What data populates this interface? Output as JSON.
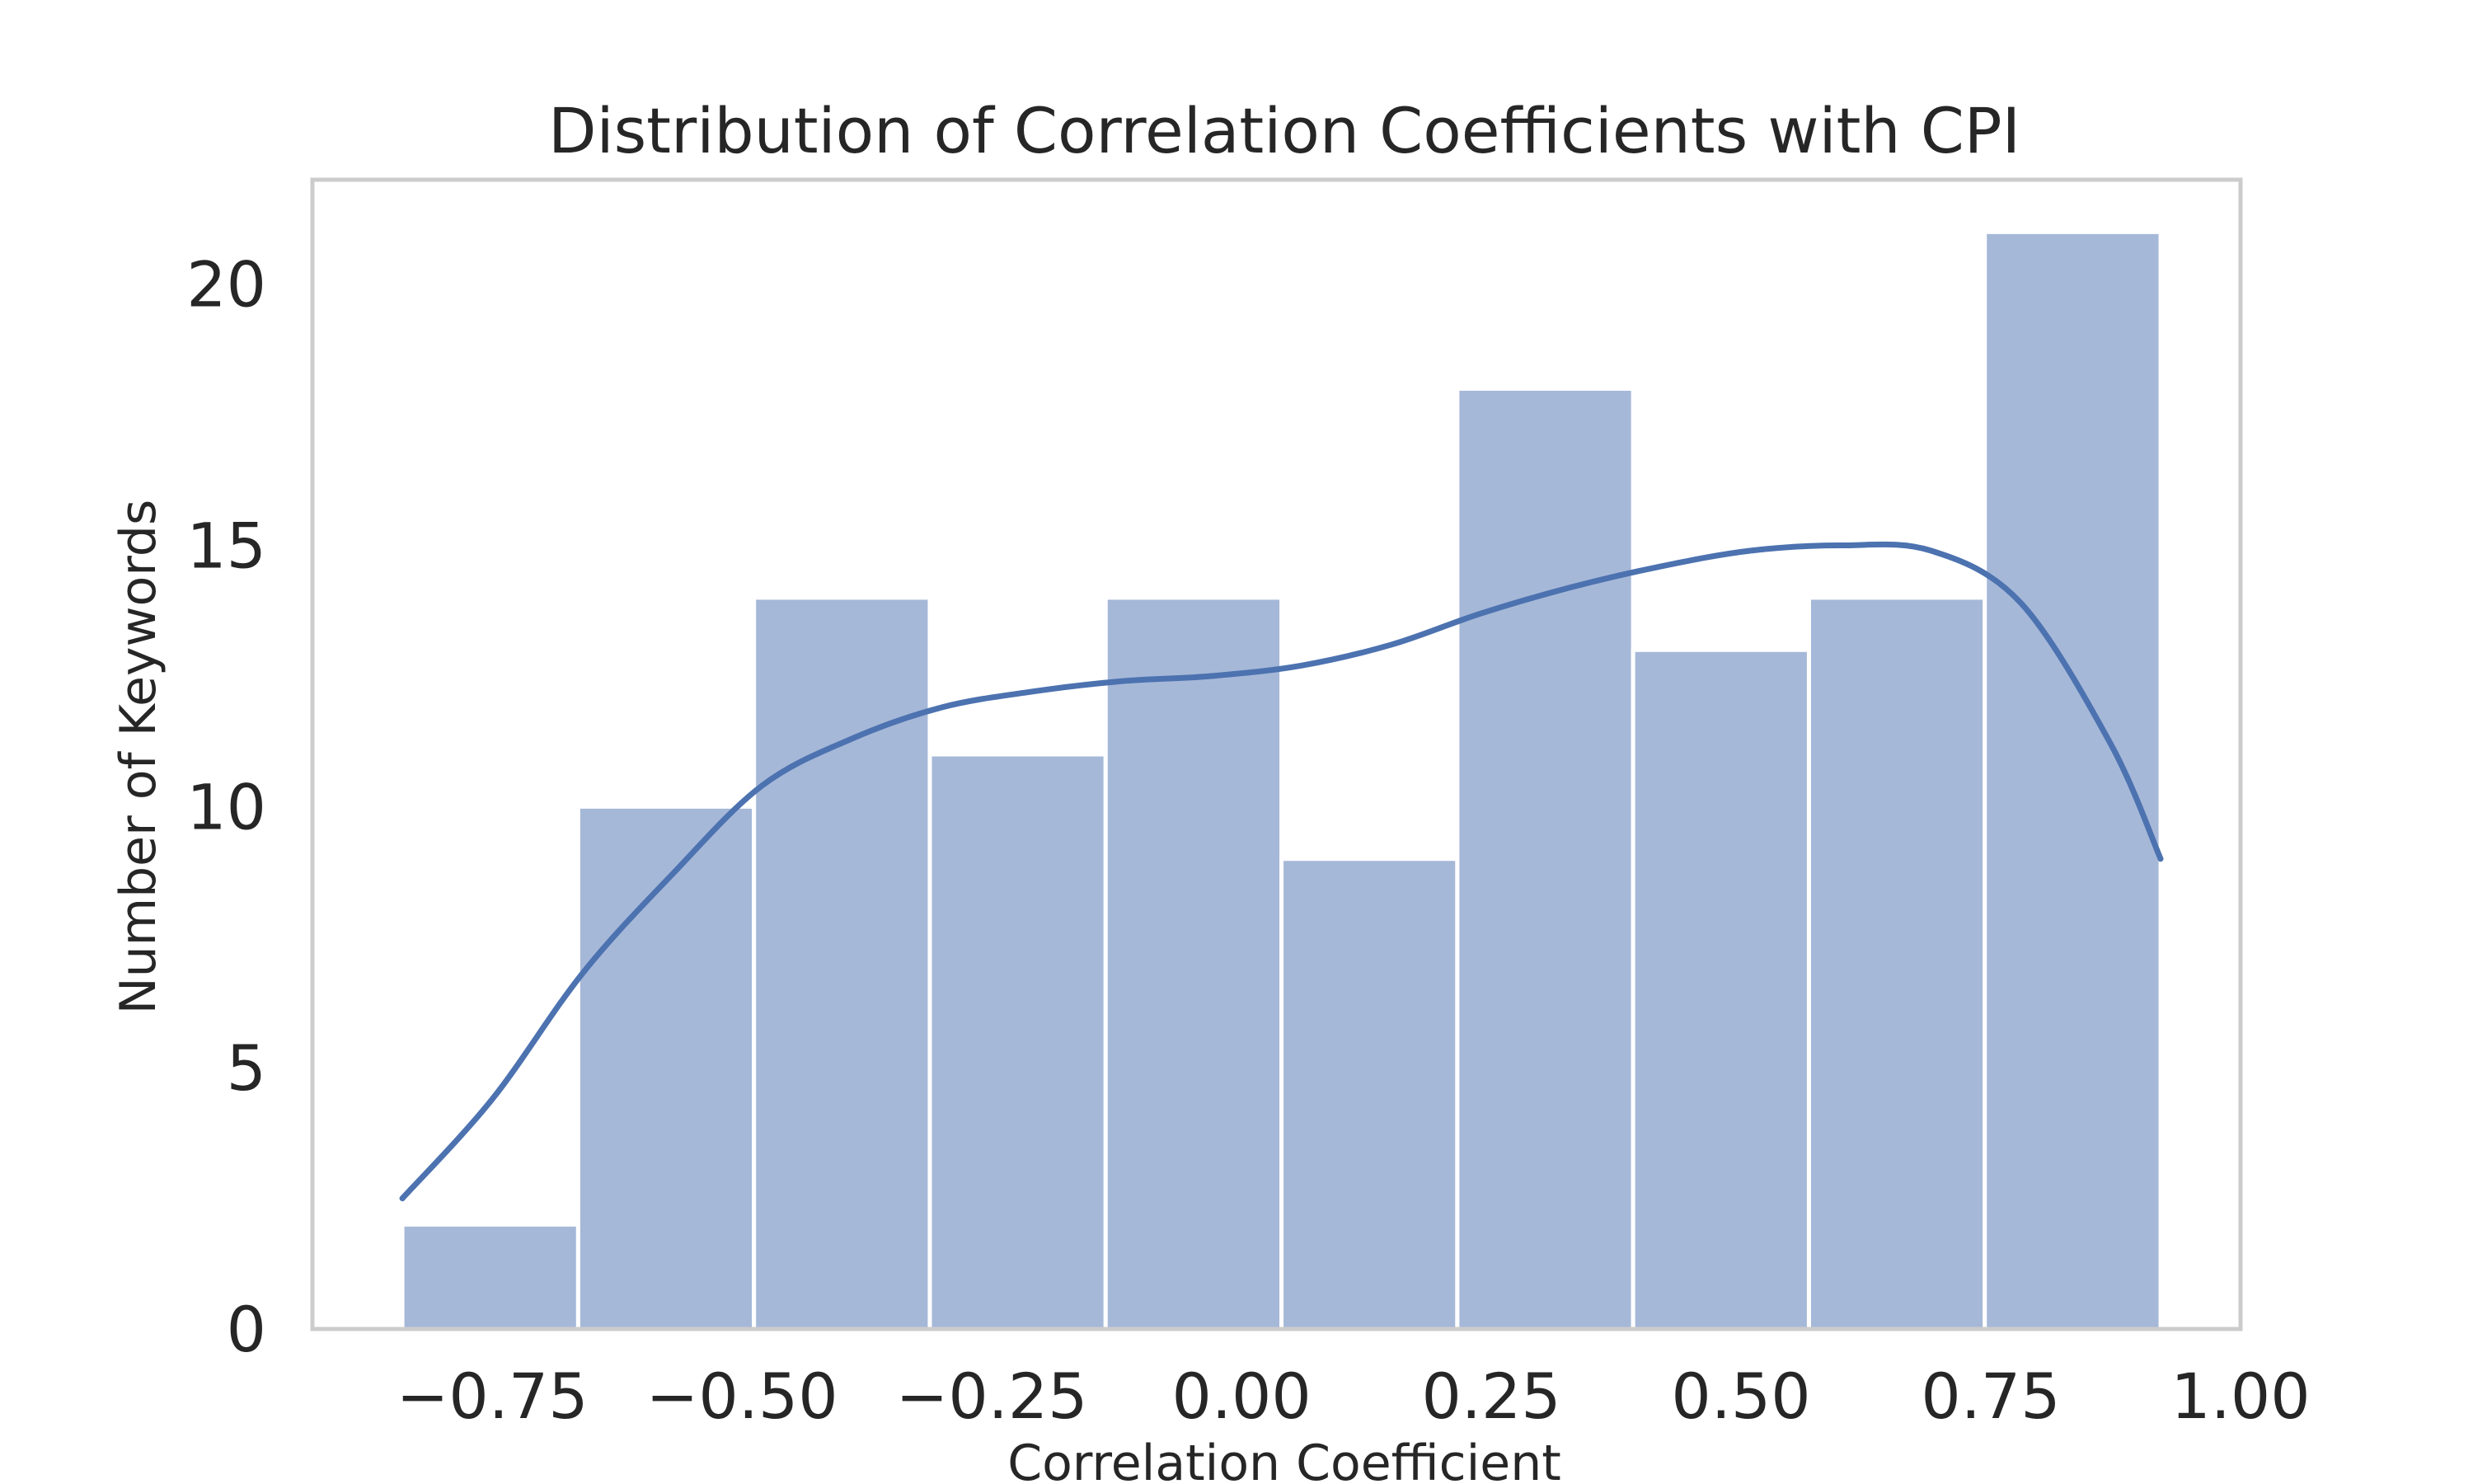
{
  "chart_data": {
    "type": "bar",
    "subtype": "histogram_with_kde",
    "title": "Distribution of Correlation Coefficients with CPI",
    "xlabel": "Correlation Coefficient",
    "ylabel": "Number of Keywords",
    "xlim": [
      -0.93,
      1.0
    ],
    "ylim": [
      0,
      22
    ],
    "x_ticks": [
      "−0.75",
      "−0.50",
      "−0.25",
      "0.00",
      "0.25",
      "0.50",
      "0.75",
      "1.00"
    ],
    "x_tick_values": [
      -0.75,
      -0.5,
      -0.25,
      0.0,
      0.25,
      0.5,
      0.75,
      1.0
    ],
    "y_ticks": [
      "0",
      "5",
      "10",
      "15",
      "20"
    ],
    "y_tick_values": [
      0,
      5,
      10,
      15,
      20
    ],
    "grid": false,
    "bin_edges": [
      -0.84,
      -0.664,
      -0.488,
      -0.312,
      -0.136,
      0.04,
      0.216,
      0.392,
      0.568,
      0.744,
      0.92
    ],
    "counts": [
      2,
      10,
      14,
      11,
      14,
      9,
      18,
      13,
      14,
      21
    ],
    "kde": {
      "name": "",
      "x": [
        -0.84,
        -0.75,
        -0.66,
        -0.57,
        -0.48,
        -0.39,
        -0.3,
        -0.21,
        -0.12,
        -0.03,
        0.06,
        0.15,
        0.24,
        0.33,
        0.42,
        0.51,
        0.6,
        0.69,
        0.78,
        0.87,
        0.92
      ],
      "y": [
        2.5,
        4.4,
        6.8,
        8.7,
        10.4,
        11.3,
        11.9,
        12.2,
        12.4,
        12.5,
        12.7,
        13.1,
        13.7,
        14.2,
        14.6,
        14.9,
        15.0,
        14.9,
        13.9,
        11.2,
        9.0
      ]
    },
    "colors": {
      "bar_fill": "#a6b8d8",
      "bar_edge": "#ffffff",
      "kde_line": "#4c72b0",
      "frame": "#cccccc",
      "text": "#262626"
    }
  }
}
